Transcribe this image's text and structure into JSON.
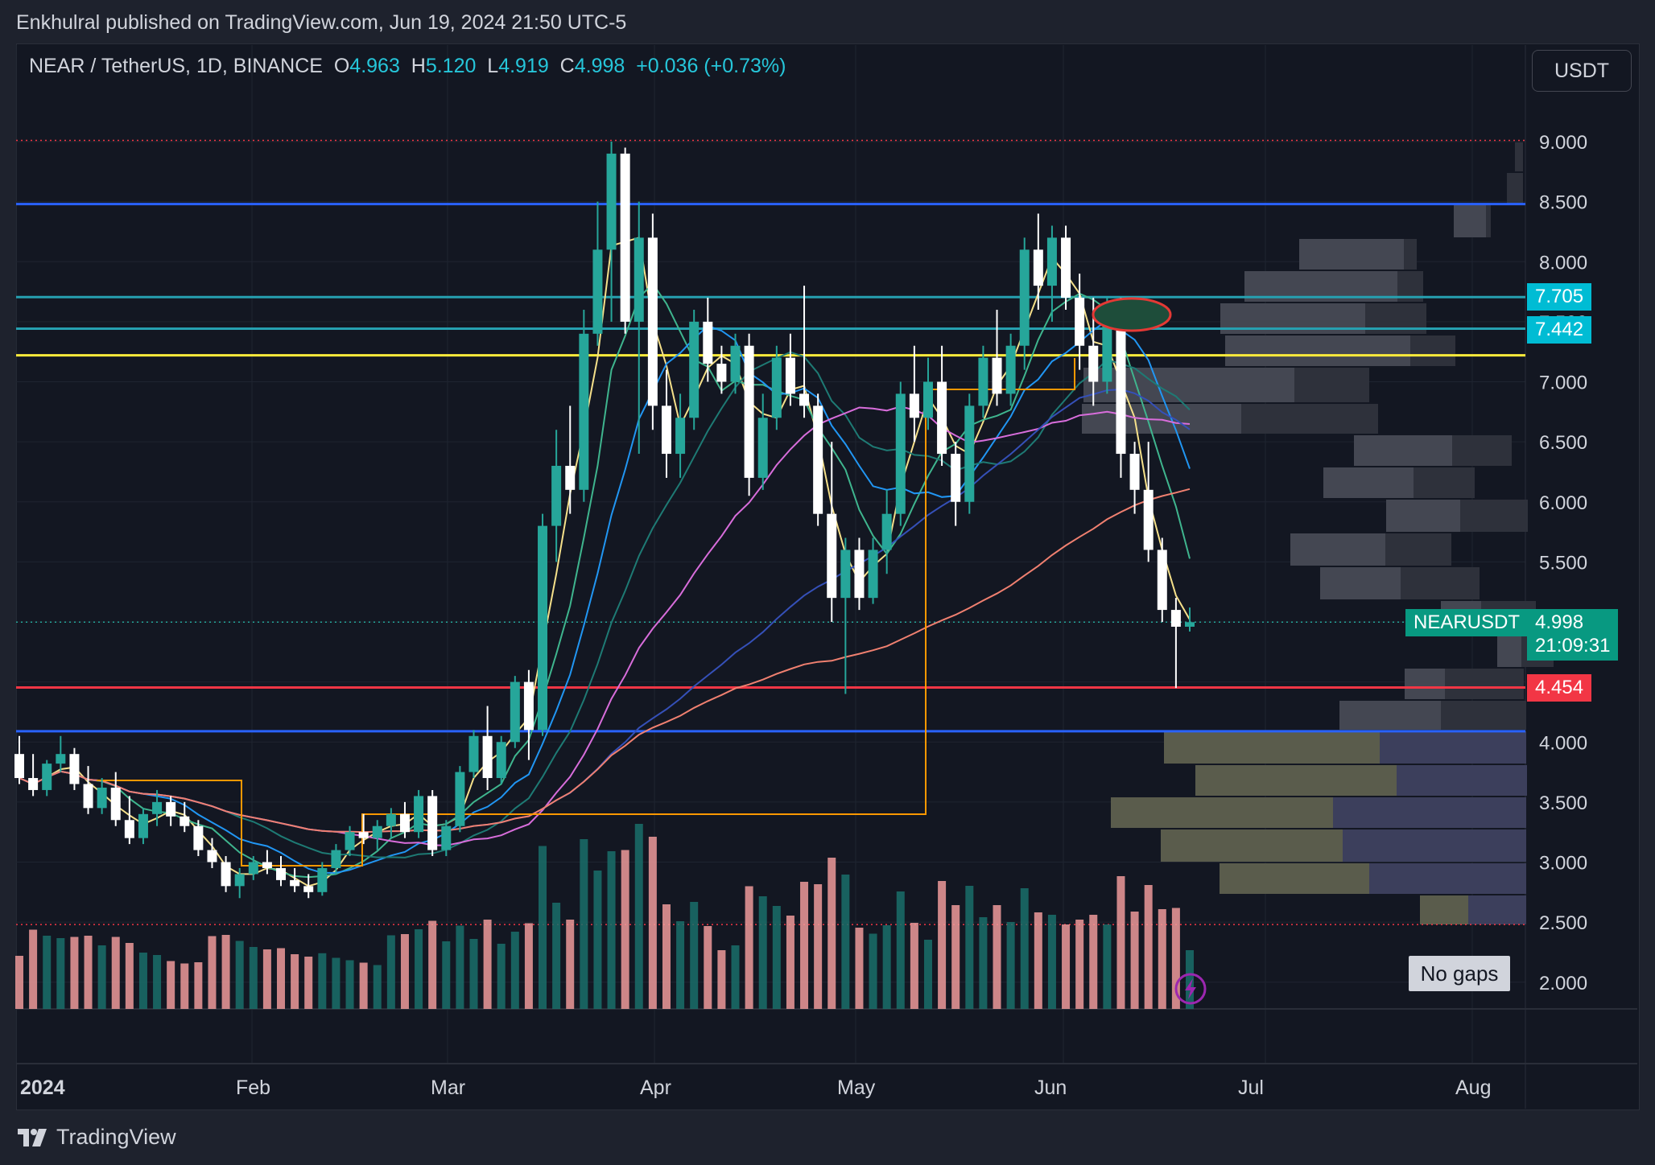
{
  "header": {
    "publish_text": "Enkhulral published on TradingView.com, Jun 19, 2024 21:50 UTC-5"
  },
  "legend": {
    "symbol_text": "NEAR / TetherUS, 1D, BINANCE",
    "open_label": "O",
    "open": "4.963",
    "high_label": "H",
    "high": "5.120",
    "low_label": "L",
    "low": "4.919",
    "close_label": "C",
    "close": "4.998",
    "change": "+0.036 (+0.73%)"
  },
  "currency_button": "USDT",
  "price_tags": {
    "level_1": "7.705",
    "level_2": "7.442",
    "last_symbol": "NEARUSDT",
    "last_price": "4.998",
    "countdown": "21:09:31",
    "support": "4.454"
  },
  "no_gaps_label": "No gaps",
  "footer": {
    "brand": "TradingView"
  },
  "colors": {
    "background": "#131722",
    "up_candle": "#26a69a",
    "down_candle": "#ffffff",
    "up_volume": "#1a6f6a",
    "down_volume": "#ef9a9a",
    "blue_line": "#2962ff",
    "teal_line": "#26a0b0",
    "yellow_line": "#ffeb3b",
    "red_line": "#f23645",
    "orange_line": "#ff9800",
    "circle": "#e53935"
  },
  "chart_data": {
    "type": "candlestick",
    "y_axis_ticks": [
      "9.000",
      "8.500",
      "8.000",
      "7.500",
      "7.000",
      "6.500",
      "6.000",
      "5.500",
      "5.000",
      "4.500",
      "4.000",
      "3.500",
      "3.000",
      "2.500",
      "2.000"
    ],
    "ylim": [
      1.8,
      9.5
    ],
    "x_axis_ticks": [
      "2024",
      "Feb",
      "Mar",
      "Apr",
      "May",
      "Jun",
      "Jul",
      "Aug"
    ],
    "horizontal_levels": [
      {
        "price": 8.48,
        "color": "#2962ff"
      },
      {
        "price": 7.705,
        "color": "#26a0b0"
      },
      {
        "price": 7.442,
        "color": "#26a0b0"
      },
      {
        "price": 7.22,
        "color": "#ffeb3b"
      },
      {
        "price": 4.454,
        "color": "#f23645"
      },
      {
        "price": 4.09,
        "color": "#2962ff"
      }
    ],
    "dotted_levels": [
      9.01,
      2.48
    ],
    "candles": [
      [
        3.9,
        4.05,
        3.65,
        3.7
      ],
      [
        3.7,
        3.9,
        3.55,
        3.6
      ],
      [
        3.6,
        3.85,
        3.55,
        3.82
      ],
      [
        3.82,
        4.05,
        3.75,
        3.9
      ],
      [
        3.9,
        3.95,
        3.6,
        3.65
      ],
      [
        3.65,
        3.8,
        3.4,
        3.45
      ],
      [
        3.45,
        3.7,
        3.4,
        3.62
      ],
      [
        3.62,
        3.75,
        3.3,
        3.35
      ],
      [
        3.35,
        3.55,
        3.15,
        3.2
      ],
      [
        3.2,
        3.45,
        3.15,
        3.4
      ],
      [
        3.4,
        3.6,
        3.3,
        3.5
      ],
      [
        3.5,
        3.55,
        3.3,
        3.38
      ],
      [
        3.38,
        3.5,
        3.25,
        3.3
      ],
      [
        3.3,
        3.35,
        3.05,
        3.1
      ],
      [
        3.1,
        3.2,
        2.95,
        3.0
      ],
      [
        3.0,
        3.05,
        2.75,
        2.8
      ],
      [
        2.8,
        2.95,
        2.7,
        2.9
      ],
      [
        2.9,
        3.05,
        2.85,
        3.0
      ],
      [
        3.0,
        3.1,
        2.9,
        2.95
      ],
      [
        2.95,
        3.05,
        2.8,
        2.85
      ],
      [
        2.85,
        2.95,
        2.75,
        2.8
      ],
      [
        2.8,
        2.9,
        2.7,
        2.75
      ],
      [
        2.75,
        3.0,
        2.72,
        2.95
      ],
      [
        2.95,
        3.15,
        2.9,
        3.1
      ],
      [
        3.1,
        3.3,
        3.05,
        3.25
      ],
      [
        3.25,
        3.4,
        3.15,
        3.2
      ],
      [
        3.2,
        3.35,
        3.1,
        3.3
      ],
      [
        3.3,
        3.45,
        3.2,
        3.4
      ],
      [
        3.4,
        3.5,
        3.2,
        3.25
      ],
      [
        3.25,
        3.6,
        3.2,
        3.55
      ],
      [
        3.55,
        3.6,
        3.05,
        3.1
      ],
      [
        3.1,
        3.35,
        3.05,
        3.3
      ],
      [
        3.3,
        3.8,
        3.25,
        3.75
      ],
      [
        3.75,
        4.1,
        3.7,
        4.05
      ],
      [
        4.05,
        4.3,
        3.6,
        3.7
      ],
      [
        3.7,
        4.05,
        3.65,
        4.0
      ],
      [
        4.0,
        4.55,
        3.95,
        4.5
      ],
      [
        4.5,
        4.6,
        3.85,
        4.1
      ],
      [
        4.1,
        5.9,
        4.05,
        5.8
      ],
      [
        5.8,
        6.6,
        5.5,
        6.3
      ],
      [
        6.3,
        6.8,
        5.9,
        6.1
      ],
      [
        6.1,
        7.6,
        6.0,
        7.4
      ],
      [
        7.4,
        8.5,
        7.3,
        8.1
      ],
      [
        8.1,
        9.0,
        7.5,
        8.9
      ],
      [
        8.9,
        8.95,
        7.4,
        7.5
      ],
      [
        7.5,
        8.5,
        6.4,
        8.2
      ],
      [
        8.2,
        8.4,
        6.6,
        6.8
      ],
      [
        6.8,
        7.1,
        6.2,
        6.4
      ],
      [
        6.4,
        6.9,
        6.2,
        6.7
      ],
      [
        6.7,
        7.6,
        6.6,
        7.5
      ],
      [
        7.5,
        7.7,
        7.0,
        7.15
      ],
      [
        7.15,
        7.3,
        6.9,
        7.0
      ],
      [
        7.0,
        7.4,
        6.9,
        7.3
      ],
      [
        7.3,
        7.4,
        6.05,
        6.2
      ],
      [
        6.2,
        6.9,
        6.1,
        6.7
      ],
      [
        6.7,
        7.3,
        6.6,
        7.2
      ],
      [
        7.2,
        7.4,
        6.8,
        6.9
      ],
      [
        6.9,
        7.8,
        6.7,
        6.8
      ],
      [
        6.8,
        6.9,
        5.8,
        5.9
      ],
      [
        5.9,
        6.5,
        5.0,
        5.2
      ],
      [
        5.2,
        5.7,
        4.4,
        5.6
      ],
      [
        5.6,
        5.7,
        5.1,
        5.2
      ],
      [
        5.2,
        5.7,
        5.15,
        5.6
      ],
      [
        5.6,
        6.1,
        5.4,
        5.9
      ],
      [
        5.9,
        7.0,
        5.8,
        6.9
      ],
      [
        6.9,
        7.3,
        6.5,
        6.7
      ],
      [
        6.7,
        7.2,
        6.6,
        7.0
      ],
      [
        7.0,
        7.3,
        6.3,
        6.4
      ],
      [
        6.4,
        6.5,
        5.8,
        6.0
      ],
      [
        6.0,
        6.9,
        5.9,
        6.8
      ],
      [
        6.8,
        7.3,
        6.7,
        7.2
      ],
      [
        7.2,
        7.6,
        6.8,
        6.9
      ],
      [
        6.9,
        7.4,
        6.8,
        7.3
      ],
      [
        7.3,
        8.2,
        7.1,
        8.1
      ],
      [
        8.1,
        8.4,
        7.6,
        7.8
      ],
      [
        7.8,
        8.3,
        7.5,
        8.2
      ],
      [
        8.2,
        8.3,
        7.6,
        7.7
      ],
      [
        7.7,
        7.9,
        7.1,
        7.3
      ],
      [
        7.3,
        7.7,
        6.8,
        7.0
      ],
      [
        7.0,
        7.7,
        6.9,
        7.6
      ],
      [
        7.6,
        7.7,
        6.2,
        6.4
      ],
      [
        6.4,
        6.5,
        5.9,
        6.1
      ],
      [
        6.1,
        6.5,
        5.5,
        5.6
      ],
      [
        5.6,
        5.7,
        5.0,
        5.1
      ],
      [
        5.1,
        5.2,
        4.45,
        4.96
      ],
      [
        4.96,
        5.12,
        4.92,
        4.998
      ]
    ],
    "volume_profile": "grey/violet horizontal histogram on right side"
  }
}
